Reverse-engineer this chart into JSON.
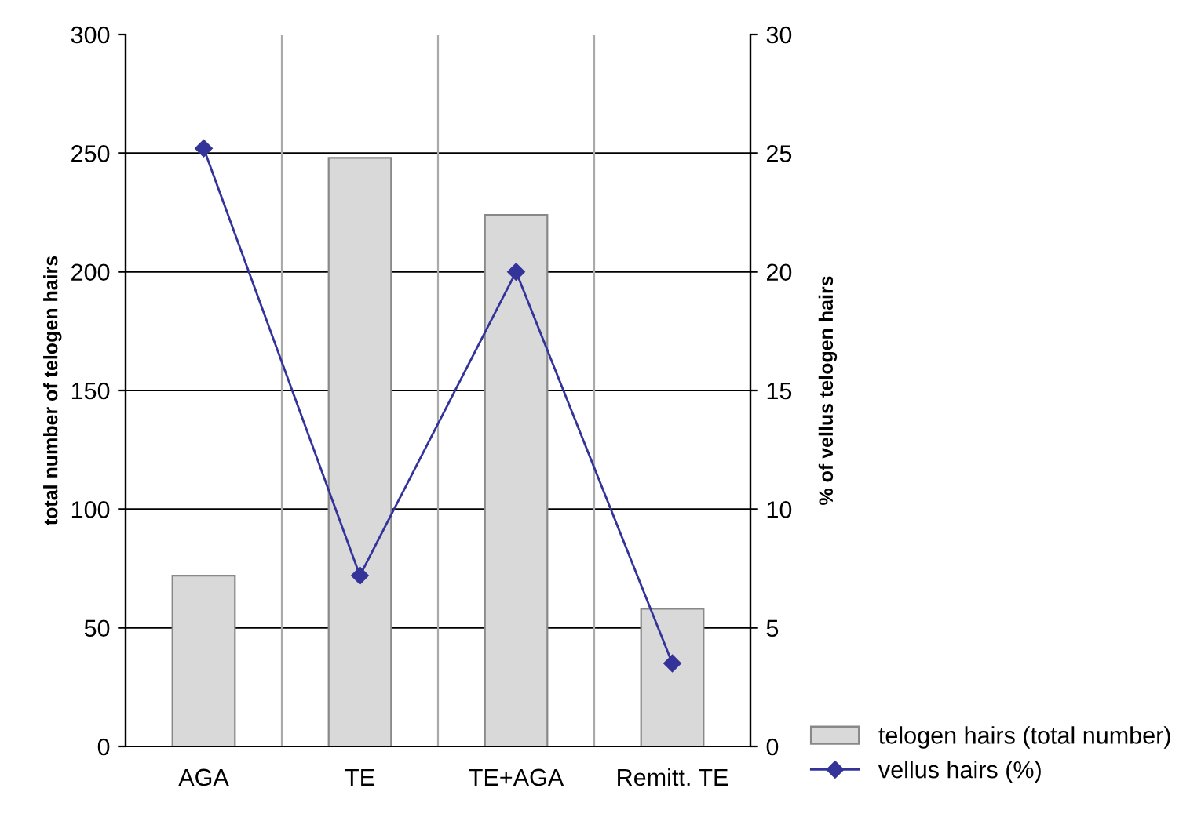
{
  "chart_data": {
    "type": "bar",
    "categories": [
      "AGA",
      "TE",
      "TE+AGA",
      "Remitt. TE"
    ],
    "series": [
      {
        "name": "telogen hairs (total number)",
        "color": "#d9d9d9",
        "values": [
          72,
          248,
          224,
          58
        ]
      },
      {
        "name": "vellus hairs (%)",
        "type": "line",
        "axis": "y2",
        "color": "#333399",
        "marker": "diamond",
        "values": [
          25.2,
          7.2,
          20,
          3.5
        ]
      }
    ],
    "ylabel": "total number of telogen hairs",
    "y2label": "% of vellus telogen hairs",
    "ylim": [
      0,
      300
    ],
    "yticks": [
      0,
      50,
      100,
      150,
      200,
      250,
      300
    ],
    "y2lim": [
      0,
      30
    ],
    "y2ticks": [
      0,
      5,
      10,
      15,
      20,
      25,
      30
    ],
    "grid": true,
    "legend": "bottom right"
  }
}
